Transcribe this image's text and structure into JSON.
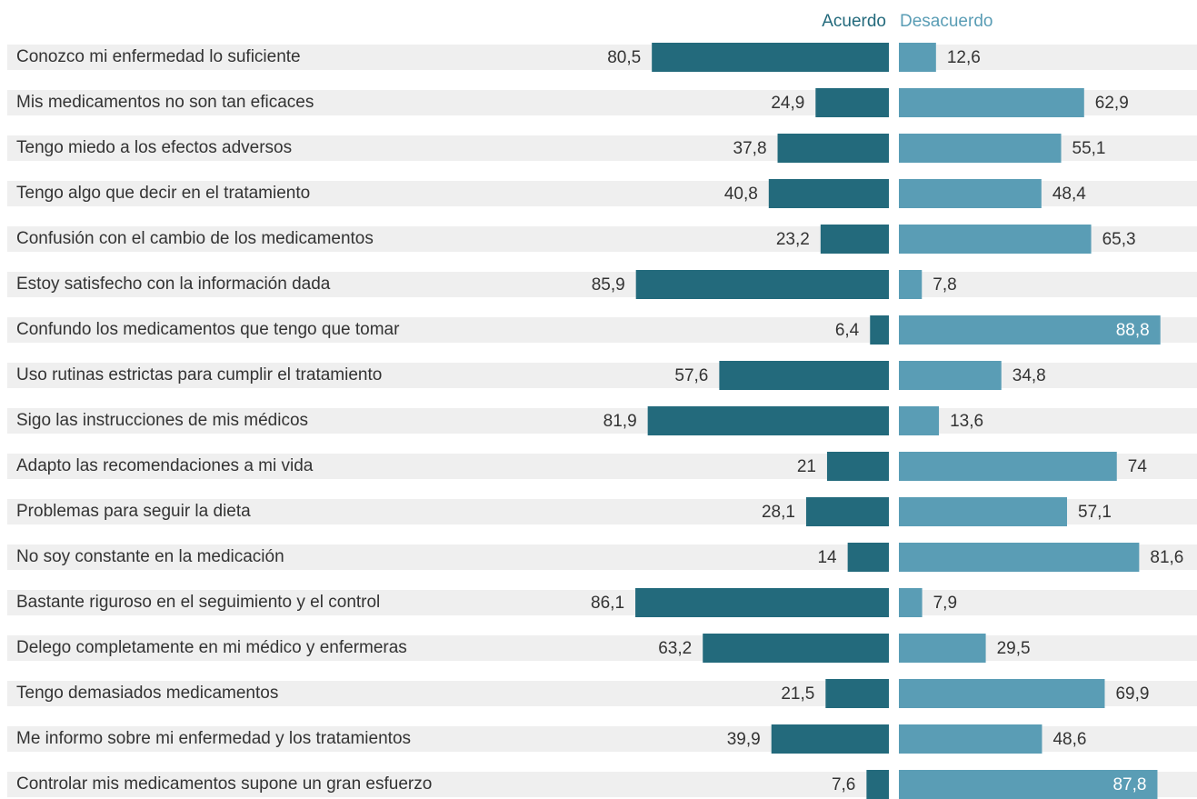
{
  "chart_data": {
    "type": "diverging-bar",
    "categories": [
      "Conozco mi enfermedad lo suficiente",
      "Mis medicamentos no son tan eficaces",
      "Tengo miedo a los efectos adversos",
      "Tengo algo que decir en el tratamiento",
      "Confusión con el cambio de los medicamentos",
      "Estoy satisfecho con la información dada",
      "Confundo los medicamentos que tengo que tomar",
      "Uso rutinas estrictas para cumplir el tratamiento",
      "Sigo las instrucciones de mis médicos",
      "Adapto las recomendaciones a mi vida",
      "Problemas para seguir la dieta",
      "No soy constante en la medicación",
      "Bastante riguroso en el seguimiento y el control",
      "Delego completamente en mi médico y enfermeras",
      "Tengo demasiados medicamentos",
      "Me informo sobre mi enfermedad y los tratamientos",
      "Controlar mis medicamentos supone un gran esfuerzo"
    ],
    "series": [
      {
        "name": "Acuerdo",
        "color": "#236a7c",
        "values": [
          80.5,
          24.9,
          37.8,
          40.8,
          23.2,
          85.9,
          6.4,
          57.6,
          81.9,
          21,
          28.1,
          14,
          86.1,
          63.2,
          21.5,
          39.9,
          7.6
        ],
        "value_labels": [
          "80,5",
          "24,9",
          "37,8",
          "40,8",
          "23,2",
          "85,9",
          "6,4",
          "57,6",
          "81,9",
          "21",
          "28,1",
          "14",
          "86,1",
          "63,2",
          "21,5",
          "39,9",
          "7,6"
        ]
      },
      {
        "name": "Desacuerdo",
        "color": "#5a9db5",
        "values": [
          12.6,
          62.9,
          55.1,
          48.4,
          65.3,
          7.8,
          88.8,
          34.8,
          13.6,
          74,
          57.1,
          81.6,
          7.9,
          29.5,
          69.9,
          48.6,
          87.8
        ],
        "value_labels": [
          "12,6",
          "62,9",
          "55,1",
          "48,4",
          "65,3",
          "7,8",
          "88,8",
          "34,8",
          "13,6",
          "74",
          "57,1",
          "81,6",
          "7,9",
          "29,5",
          "69,9",
          "48,6",
          "87,8"
        ]
      }
    ]
  }
}
